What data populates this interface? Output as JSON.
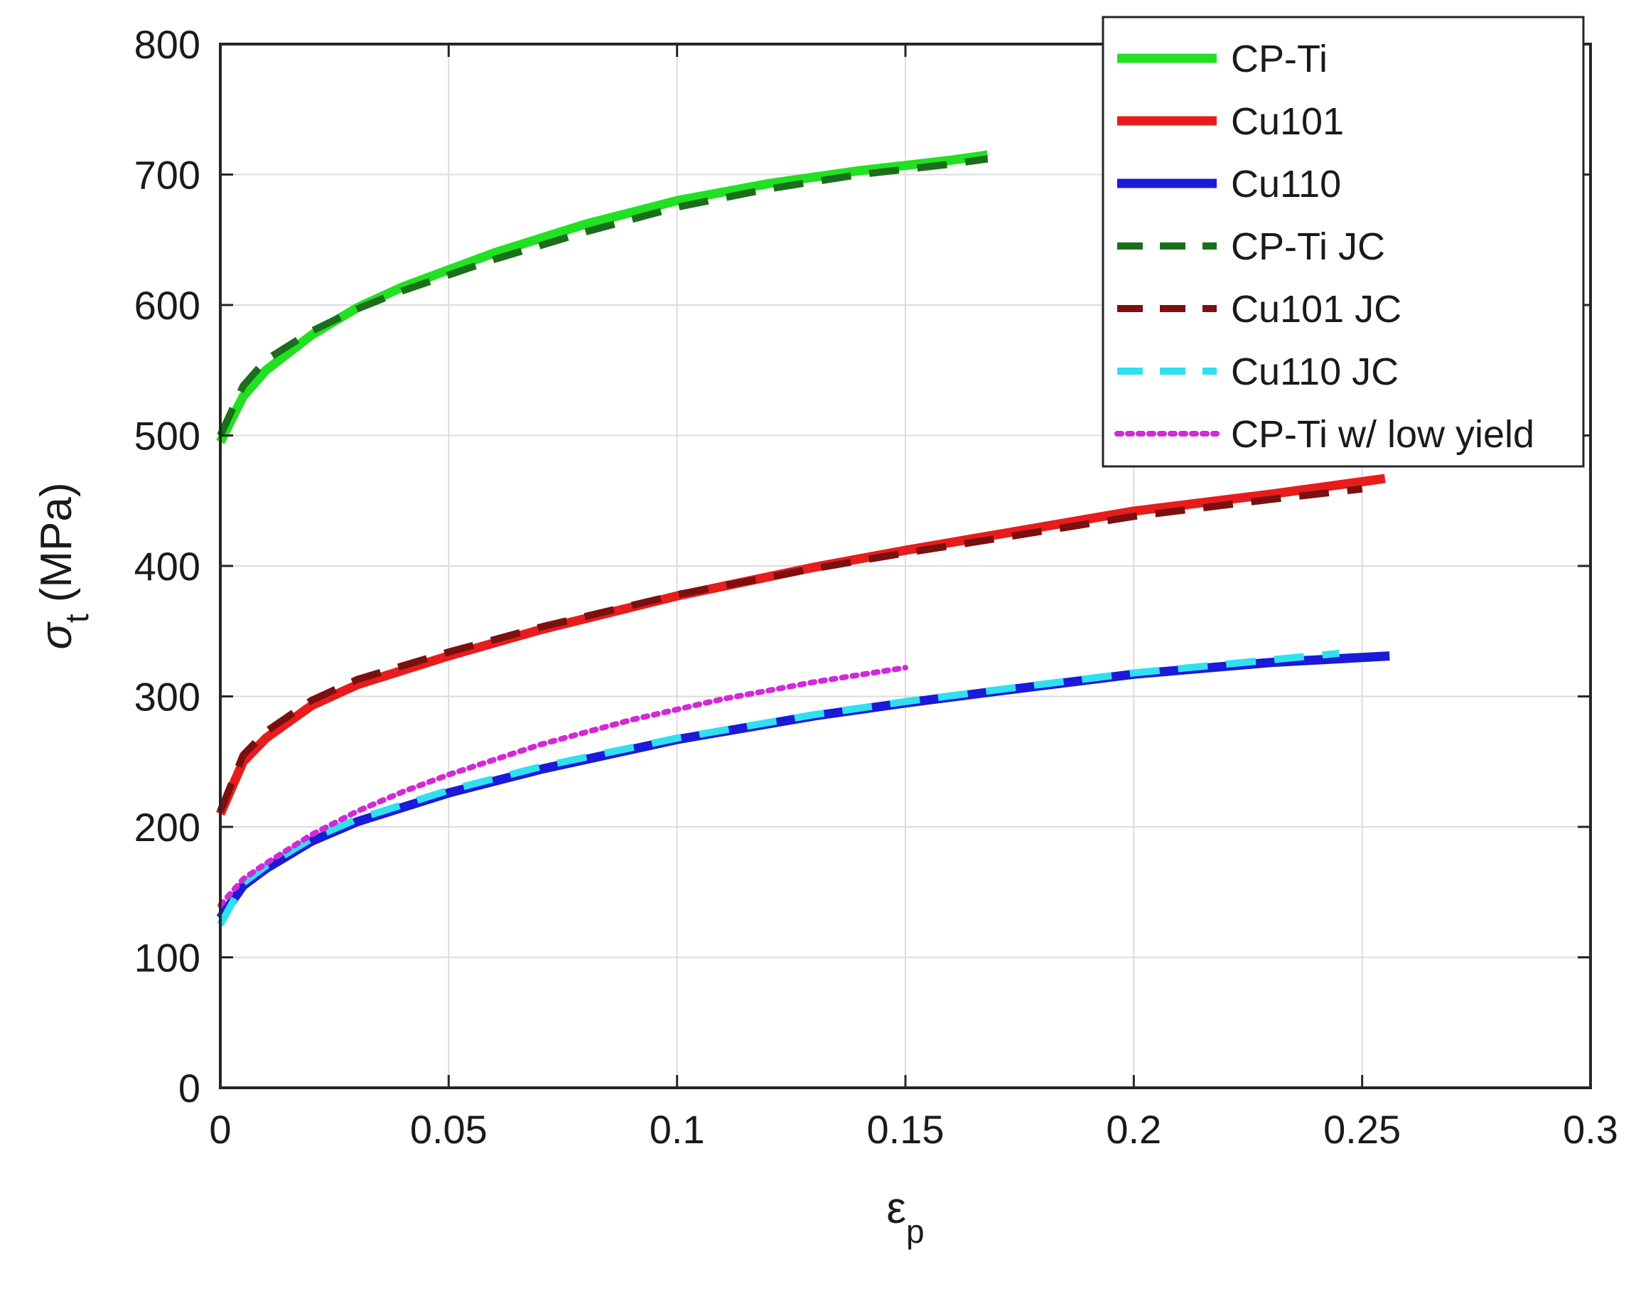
{
  "chart_data": {
    "type": "line",
    "xlabel": "ε",
    "xlabel_sub": "p",
    "ylabel": "σ",
    "ylabel_sub": "t",
    "ylabel_unit": "(MPa)",
    "xlim": [
      0,
      0.3
    ],
    "ylim": [
      0,
      800
    ],
    "xticks": [
      0,
      0.05,
      0.1,
      0.15,
      0.2,
      0.25,
      0.3
    ],
    "xtick_labels": [
      "0",
      "0.05",
      "0.1",
      "0.15",
      "0.2",
      "0.25",
      "0.3"
    ],
    "yticks": [
      0,
      100,
      200,
      300,
      400,
      500,
      600,
      700,
      800
    ],
    "ytick_labels": [
      "0",
      "100",
      "200",
      "300",
      "400",
      "500",
      "600",
      "700",
      "800"
    ],
    "grid": true,
    "legend_position": "top-right",
    "series": [
      {
        "name": "CP-Ti",
        "color": "#22e022",
        "style": "solid",
        "x": [
          0,
          0.005,
          0.01,
          0.02,
          0.03,
          0.04,
          0.05,
          0.06,
          0.08,
          0.1,
          0.12,
          0.14,
          0.16,
          0.168
        ],
        "y": [
          495,
          530,
          550,
          577,
          598,
          614,
          627,
          640,
          662,
          680,
          693,
          703,
          711,
          715
        ]
      },
      {
        "name": "Cu101",
        "color": "#e81c1c",
        "style": "solid",
        "x": [
          0,
          0.005,
          0.01,
          0.02,
          0.03,
          0.05,
          0.07,
          0.1,
          0.13,
          0.15,
          0.17,
          0.2,
          0.23,
          0.255
        ],
        "y": [
          210,
          250,
          268,
          293,
          309,
          331,
          351,
          377,
          399,
          412,
          424,
          442,
          455,
          467
        ]
      },
      {
        "name": "Cu110",
        "color": "#1a1ad8",
        "style": "solid",
        "x": [
          0,
          0.005,
          0.01,
          0.02,
          0.03,
          0.05,
          0.07,
          0.1,
          0.13,
          0.15,
          0.17,
          0.2,
          0.23,
          0.256
        ],
        "y": [
          130,
          155,
          168,
          189,
          204,
          226,
          244,
          267,
          285,
          295,
          304,
          317,
          326,
          331
        ]
      },
      {
        "name": "CP-Ti JC",
        "color": "#1b6e1b",
        "style": "dashed",
        "x": [
          0,
          0.005,
          0.01,
          0.02,
          0.03,
          0.04,
          0.05,
          0.06,
          0.08,
          0.1,
          0.12,
          0.14,
          0.16,
          0.168
        ],
        "y": [
          500,
          538,
          558,
          580,
          597,
          611,
          623,
          635,
          656,
          675,
          689,
          700,
          708,
          712
        ]
      },
      {
        "name": "Cu101 JC",
        "color": "#7a1010",
        "style": "dashed",
        "x": [
          0,
          0.005,
          0.01,
          0.02,
          0.03,
          0.05,
          0.07,
          0.1,
          0.13,
          0.15,
          0.17,
          0.2,
          0.23,
          0.25
        ],
        "y": [
          212,
          255,
          273,
          297,
          313,
          334,
          353,
          378,
          398,
          410,
          421,
          438,
          451,
          459
        ]
      },
      {
        "name": "Cu110 JC",
        "color": "#2fe0f0",
        "style": "dashed",
        "x": [
          0,
          0.005,
          0.01,
          0.02,
          0.03,
          0.05,
          0.07,
          0.1,
          0.13,
          0.15,
          0.17,
          0.2,
          0.23,
          0.245
        ],
        "y": [
          125,
          157,
          170,
          191,
          206,
          228,
          246,
          268,
          286,
          296,
          305,
          318,
          328,
          333
        ]
      },
      {
        "name": "CP-Ti w/ low yield",
        "color": "#d12ad6",
        "style": "dotted",
        "x": [
          0,
          0.005,
          0.01,
          0.02,
          0.03,
          0.04,
          0.05,
          0.07,
          0.09,
          0.11,
          0.13,
          0.15
        ],
        "y": [
          140,
          160,
          172,
          194,
          212,
          227,
          240,
          263,
          282,
          298,
          311,
          322
        ]
      }
    ]
  }
}
